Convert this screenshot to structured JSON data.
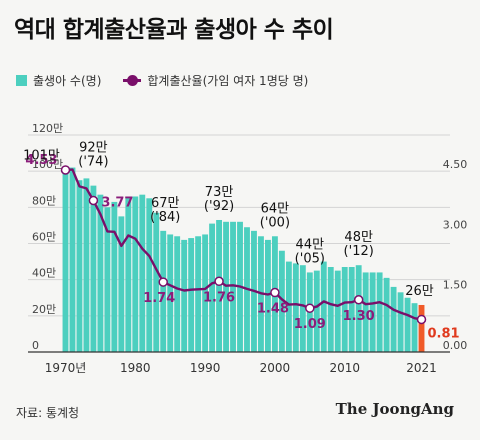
{
  "title": "역대 합계출산율과 출생아 수 추이",
  "source": "자료: 통계청",
  "brand": "The JoongAng",
  "colors": {
    "births": "#4ccfbf",
    "tfr": "#7a0f6a",
    "highlight": "#f05a28",
    "label_tfr": "#8a1d7a"
  },
  "chart_data": {
    "type": "bar",
    "xlabel": "",
    "ylabel": "",
    "y_left": {
      "range": [
        0,
        120
      ],
      "ticks": [
        "0",
        "20만",
        "40만",
        "60만",
        "80만",
        "100만",
        "120만"
      ],
      "tick_values": [
        0,
        20,
        40,
        60,
        80,
        100,
        120
      ]
    },
    "y_right": {
      "range": [
        0,
        5.4
      ],
      "ticks": [
        "0.00",
        "1.50",
        "3.00",
        "4.50"
      ],
      "tick_values": [
        0,
        1.5,
        3.0,
        4.5
      ]
    },
    "x_ticks": [
      {
        "year": 1970,
        "label": "1970년"
      },
      {
        "year": 1980,
        "label": "1980"
      },
      {
        "year": 1990,
        "label": "1990"
      },
      {
        "year": 2000,
        "label": "2000"
      },
      {
        "year": 2010,
        "label": "2010"
      },
      {
        "year": 2021,
        "label": "2021"
      }
    ],
    "grid": true,
    "legend": "top-left",
    "x": [
      1970,
      1971,
      1972,
      1973,
      1974,
      1975,
      1976,
      1977,
      1978,
      1979,
      1980,
      1981,
      1982,
      1983,
      1984,
      1985,
      1986,
      1987,
      1988,
      1989,
      1990,
      1991,
      1992,
      1993,
      1994,
      1995,
      1996,
      1997,
      1998,
      1999,
      2000,
      2001,
      2002,
      2003,
      2004,
      2005,
      2006,
      2007,
      2008,
      2009,
      2010,
      2011,
      2012,
      2013,
      2014,
      2015,
      2016,
      2017,
      2018,
      2019,
      2020,
      2021
    ],
    "series": [
      {
        "name": "출생아 수(명)",
        "type": "bar",
        "axis": "left",
        "values": [
          101,
          102,
          95,
          96,
          92,
          87,
          80,
          83,
          75,
          86,
          86,
          87,
          85,
          77,
          67,
          65,
          64,
          62,
          63,
          64,
          65,
          71,
          73,
          72,
          72,
          72,
          69,
          67,
          64,
          62,
          64,
          56,
          50,
          49,
          48,
          44,
          45,
          50,
          47,
          45,
          47,
          47,
          48,
          44,
          44,
          44,
          41,
          36,
          33,
          30,
          27,
          26
        ]
      },
      {
        "name": "합계출산율(가임 여자 1명당 명)",
        "type": "line",
        "axis": "right",
        "values": [
          4.53,
          4.54,
          4.12,
          4.07,
          3.77,
          3.43,
          3.0,
          2.99,
          2.64,
          2.9,
          2.82,
          2.57,
          2.39,
          2.06,
          1.74,
          1.66,
          1.58,
          1.53,
          1.55,
          1.56,
          1.57,
          1.71,
          1.76,
          1.65,
          1.66,
          1.63,
          1.57,
          1.52,
          1.46,
          1.43,
          1.48,
          1.31,
          1.18,
          1.19,
          1.16,
          1.09,
          1.13,
          1.26,
          1.19,
          1.15,
          1.23,
          1.24,
          1.3,
          1.19,
          1.21,
          1.24,
          1.17,
          1.05,
          0.98,
          0.92,
          0.84,
          0.81
        ]
      }
    ],
    "annotations": {
      "births": [
        {
          "year": 1970,
          "label": "101만"
        },
        {
          "year": 1974,
          "label": "92만",
          "sub": "('74)"
        },
        {
          "year": 1984,
          "label": "67만",
          "sub": "('84)"
        },
        {
          "year": 1992,
          "label": "73만",
          "sub": "('92)"
        },
        {
          "year": 2000,
          "label": "64만",
          "sub": "('00)"
        },
        {
          "year": 2005,
          "label": "44만",
          "sub": "('05)"
        },
        {
          "year": 2012,
          "label": "48만",
          "sub": "('12)"
        },
        {
          "year": 2021,
          "label": "26만"
        }
      ],
      "tfr": [
        {
          "year": 1970,
          "label": "4.53"
        },
        {
          "year": 1974,
          "label": "3.77"
        },
        {
          "year": 1984,
          "label": "1.74"
        },
        {
          "year": 1992,
          "label": "1.76"
        },
        {
          "year": 2000,
          "label": "1.48"
        },
        {
          "year": 2005,
          "label": "1.09"
        },
        {
          "year": 2012,
          "label": "1.30"
        },
        {
          "year": 2021,
          "label": "0.81"
        }
      ]
    }
  }
}
